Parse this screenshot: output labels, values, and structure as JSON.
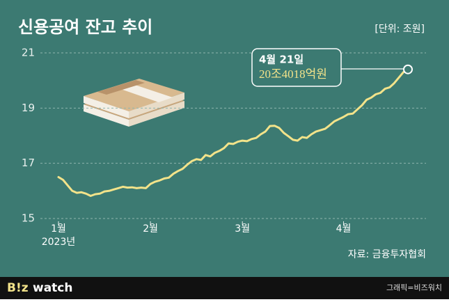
{
  "chart_data": {
    "type": "line",
    "title": "신용공여 잔고 추이",
    "unit": "[단위: 조원]",
    "source": "자료: 금융투자협회",
    "categories": [
      "1월",
      null,
      null,
      null,
      null,
      null,
      null,
      null,
      null,
      null,
      null,
      null,
      null,
      null,
      null,
      null,
      null,
      null,
      null,
      null,
      "2월",
      null,
      null,
      null,
      null,
      null,
      null,
      null,
      null,
      null,
      null,
      null,
      null,
      null,
      null,
      null,
      null,
      null,
      null,
      null,
      "3월",
      null,
      null,
      null,
      null,
      null,
      null,
      null,
      null,
      null,
      null,
      null,
      null,
      null,
      null,
      null,
      null,
      null,
      null,
      null,
      null,
      null,
      "4월",
      null,
      null,
      null,
      null,
      null,
      null,
      null,
      null,
      null,
      null,
      null,
      null,
      null,
      null
    ],
    "x_year": "2023년",
    "values": [
      16.5,
      16.4,
      16.2,
      16.0,
      15.93,
      15.95,
      15.9,
      15.82,
      15.88,
      15.9,
      15.98,
      16.0,
      16.05,
      16.1,
      16.15,
      16.12,
      16.13,
      16.1,
      16.12,
      16.1,
      16.25,
      16.33,
      16.38,
      16.45,
      16.48,
      16.62,
      16.72,
      16.8,
      16.95,
      17.08,
      17.15,
      17.12,
      17.3,
      17.25,
      17.38,
      17.45,
      17.55,
      17.72,
      17.7,
      17.78,
      17.82,
      17.8,
      17.88,
      17.92,
      18.05,
      18.15,
      18.35,
      18.36,
      18.28,
      18.1,
      17.98,
      17.85,
      17.82,
      17.95,
      17.92,
      18.05,
      18.15,
      18.2,
      18.25,
      18.38,
      18.52,
      18.6,
      18.68,
      18.78,
      18.8,
      18.95,
      19.1,
      19.3,
      19.38,
      19.5,
      19.55,
      19.7,
      19.75,
      19.9,
      20.1,
      20.3,
      20.4018
    ],
    "color": "#f3e38a",
    "ylim": [
      15,
      21
    ],
    "yticks": [
      15,
      17,
      19,
      21
    ],
    "grid": true,
    "annotation": {
      "date": "4월 21일",
      "value_label": "20조4018억원"
    }
  },
  "footer": {
    "logo_left": "B!z",
    "logo_right": "watch",
    "credit": "그래픽=비즈워치"
  }
}
